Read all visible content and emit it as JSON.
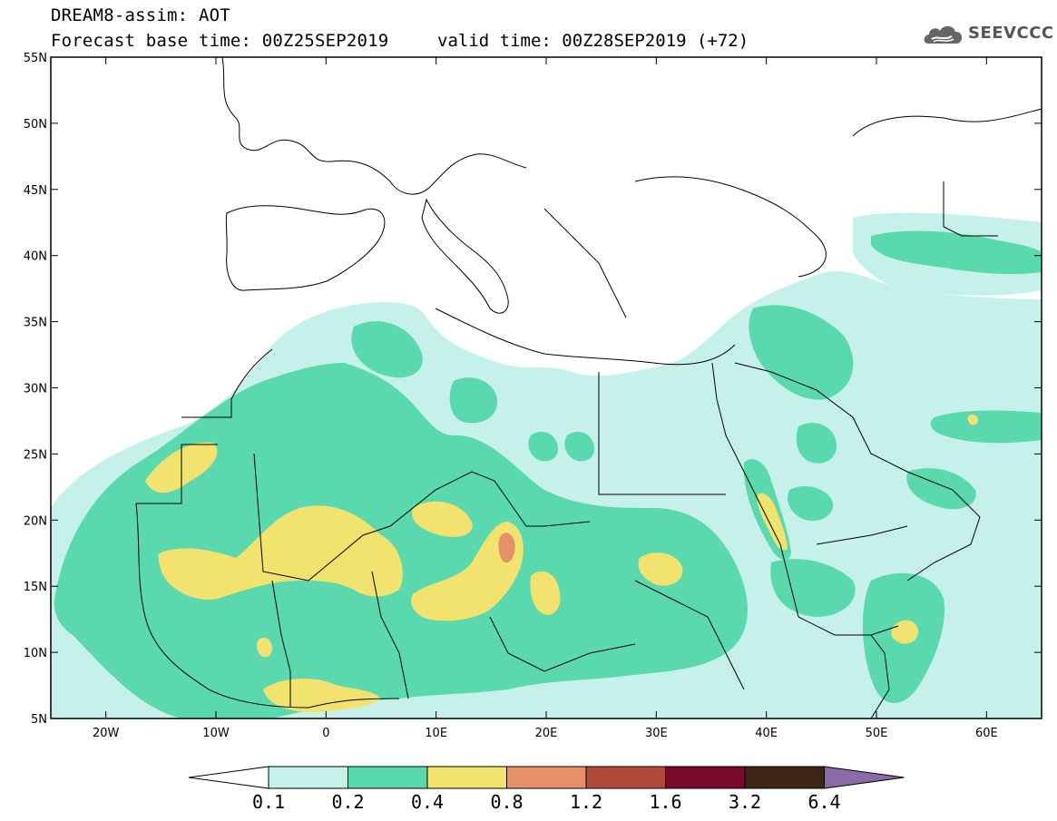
{
  "header": {
    "title": "DREAM8-assim: AOT",
    "base_time": "Forecast base time: 00Z25SEP2019",
    "valid_time": "valid time: 00Z28SEP2019 (+72)",
    "logo_text": "SEEVCCC"
  },
  "map": {
    "lon_range": [
      -25,
      65
    ],
    "lat_range": [
      5,
      55
    ],
    "lat_labels": [
      "55N",
      "50N",
      "45N",
      "40N",
      "35N",
      "30N",
      "25N",
      "20N",
      "15N",
      "10N",
      "5N"
    ],
    "lon_labels": [
      "20W",
      "10W",
      "0",
      "10E",
      "20E",
      "30E",
      "40E",
      "50E",
      "60E"
    ]
  },
  "colorbar": {
    "labels": [
      "0.1",
      "0.2",
      "0.4",
      "0.8",
      "1.2",
      "1.6",
      "3.2",
      "6.4"
    ],
    "colors": [
      "#ffffff",
      "#c6f1ea",
      "#5ad9ae",
      "#f2e26e",
      "#e6906a",
      "#b24a3c",
      "#7a0a2c",
      "#3c2613",
      "#8a6aa8"
    ]
  },
  "colors": {
    "level1": "#c6f1ea",
    "level2": "#5ad9ae",
    "level3": "#f2e26e",
    "level4": "#e6906a",
    "border": "#000000"
  }
}
